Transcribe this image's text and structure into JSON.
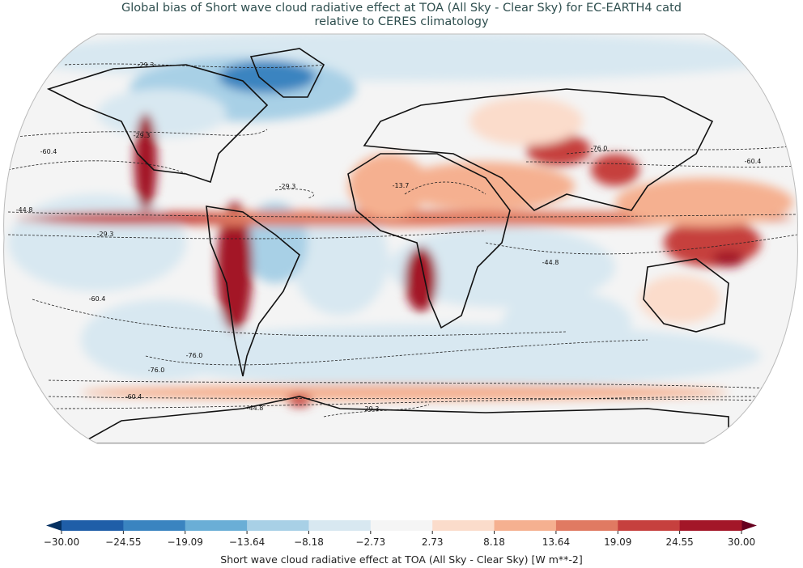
{
  "title_line1": "Global bias of Short wave cloud radiative effect at TOA (All Sky - Clear Sky) for EC-EARTH4 catd",
  "title_line2": "relative to CERES climatology",
  "map": {
    "projection": "robinson",
    "contour_levels": [
      "-76.0",
      "-60.4",
      "-44.8",
      "-29.3",
      "-13.7"
    ],
    "contour_style": "dashed black"
  },
  "colorbar": {
    "label": "Short wave cloud radiative effect at TOA (All Sky - Clear Sky) [W m**-2]",
    "ticks": [
      "−30.00",
      "−24.55",
      "−19.09",
      "−13.64",
      "−8.18",
      "−2.73",
      "2.73",
      "8.18",
      "13.64",
      "19.09",
      "24.55",
      "30.00"
    ],
    "colors": [
      "#1f5ea8",
      "#3a84c0",
      "#6aaed6",
      "#a8d0e6",
      "#d8e8f1",
      "#f5f5f5",
      "#fbdccb",
      "#f5b090",
      "#e07a62",
      "#c6403e",
      "#a31628"
    ],
    "under_color": "#053061",
    "over_color": "#67001f",
    "extend": "both"
  }
}
